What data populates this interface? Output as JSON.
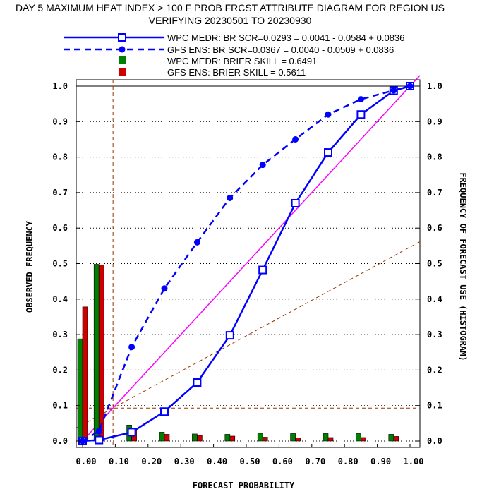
{
  "chart_data": {
    "type": "line",
    "title_line1": "DAY 5 MAXIMUM HEAT INDEX > 100 F PROB FRCST ATTRIBUTE DIAGRAM FOR REGION US",
    "title_line2": "VERIFYING 20230501 TO 20230930",
    "xlabel": "FORECAST PROBABILITY",
    "ylabel": "OBSERVED FREQUENCY",
    "y2label": "FREQUENCY OF FORECAST USE (HISTOGRAM)",
    "xlim": [
      0,
      1
    ],
    "ylim": [
      0,
      1
    ],
    "x_ticks": [
      "0.00",
      "0.10",
      "0.20",
      "0.30",
      "0.40",
      "0.50",
      "0.60",
      "0.70",
      "0.80",
      "0.90",
      "1.00"
    ],
    "y_ticks": [
      "0.0",
      "0.1",
      "0.2",
      "0.3",
      "0.4",
      "0.5",
      "0.6",
      "0.7",
      "0.8",
      "0.9",
      "1.0"
    ],
    "climatology": 0.093,
    "series": [
      {
        "name": "WPC MEDR: BR SCR=0.0293 = 0.0041 - 0.0584 + 0.0836",
        "color": "#0000ff",
        "style": "solid",
        "marker": "open-square",
        "x": [
          0.0,
          0.05,
          0.15,
          0.25,
          0.35,
          0.45,
          0.55,
          0.65,
          0.75,
          0.85,
          0.95,
          1.0
        ],
        "y": [
          0.0,
          0.003,
          0.025,
          0.083,
          0.165,
          0.298,
          0.482,
          0.67,
          0.813,
          0.92,
          0.987,
          1.0
        ]
      },
      {
        "name": "GFS ENS: BR SCR=0.0367 = 0.0040 - 0.0509 + 0.0836",
        "color": "#0000ff",
        "style": "dashed",
        "marker": "filled-circle",
        "x": [
          0.0,
          0.05,
          0.15,
          0.25,
          0.35,
          0.45,
          0.55,
          0.65,
          0.75,
          0.85,
          0.95,
          1.0
        ],
        "y": [
          0.0,
          0.028,
          0.265,
          0.43,
          0.56,
          0.685,
          0.778,
          0.85,
          0.92,
          0.963,
          0.988,
          1.0
        ]
      }
    ],
    "histograms": [
      {
        "name": "WPC MEDR:  BRIER SKILL = 0.6491",
        "color": "#008000",
        "x": [
          0.0,
          0.05,
          0.15,
          0.25,
          0.35,
          0.45,
          0.55,
          0.65,
          0.75,
          0.85,
          0.95
        ],
        "values": [
          0.288,
          0.498,
          0.045,
          0.025,
          0.02,
          0.019,
          0.022,
          0.021,
          0.021,
          0.021,
          0.019
        ]
      },
      {
        "name": "GFS ENS:  BRIER SKILL = 0.5611",
        "color": "#cc0000",
        "x": [
          0.0,
          0.05,
          0.15,
          0.25,
          0.35,
          0.45,
          0.55,
          0.65,
          0.75,
          0.85,
          0.95
        ],
        "values": [
          0.378,
          0.496,
          0.03,
          0.019,
          0.016,
          0.014,
          0.011,
          0.009,
          0.01,
          0.01,
          0.013
        ]
      }
    ],
    "reference_lines": {
      "perfect_reliability_color": "#ff00ff",
      "climatology_color": "#993300",
      "gridline_style": "dotted"
    },
    "legend_position": "top"
  }
}
